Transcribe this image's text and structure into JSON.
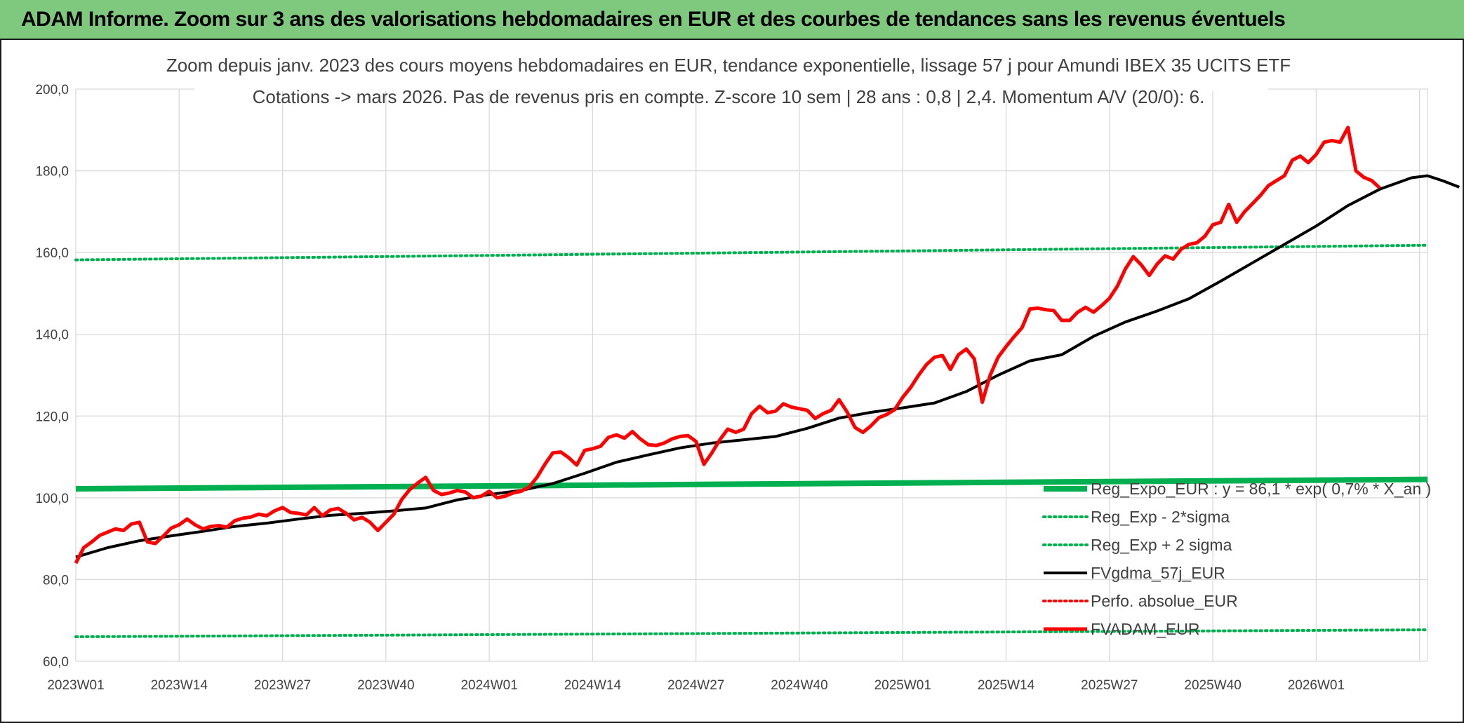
{
  "banner": {
    "title": "ADAM Informe. Zoom sur 3 ans des valorisations hebdomadaires en EUR et des courbes de tendances sans les revenus éventuels"
  },
  "colors": {
    "banner": "#7fc97f",
    "regression": "#00b050",
    "price": "#ff0000",
    "average": "#000000",
    "grid": "#d9d9d9",
    "text": "#404040"
  },
  "chart_data": {
    "type": "line",
    "title": "Zoom depuis janv. 2023 des cours moyens hebdomadaires en EUR, tendance exponentielle, lissage 57 j pour Amundi IBEX 35 UCITS ETF",
    "subtitle": "Cotations -> mars 2026. Pas de revenus pris en compte. Z-score 10 sem | 28 ans : 0,8 | 2,4. Momentum A/V (20/0): 6.",
    "xlabel": "",
    "ylabel": "",
    "ylim": [
      60,
      200
    ],
    "y_ticks": [
      "200,0",
      "180,0",
      "160,0",
      "140,0",
      "120,0",
      "100,0",
      "80,0",
      "60,0"
    ],
    "x_ticks": [
      "2023W01",
      "2023W14",
      "2023W27",
      "2023W40",
      "2024W01",
      "2024W14",
      "2024W27",
      "2024W40",
      "2025W01",
      "2025W14",
      "2025W27",
      "2025W40",
      "2026W01"
    ],
    "x_range_weeks": [
      0,
      170
    ],
    "grid": true,
    "legend_position": "bottom-right",
    "series": [
      {
        "name": "Reg_Expo_EUR : y = 86,1 * exp( 0,7% *  X_an )",
        "style": "solid-thick",
        "color": "#00b050",
        "points": [
          [
            0,
            102.2
          ],
          [
            170,
            104.5
          ]
        ]
      },
      {
        "name": "Reg_Exp - 2*sigma",
        "style": "dotted",
        "color": "#00b050",
        "points": [
          [
            0,
            66.0
          ],
          [
            170,
            67.7
          ]
        ]
      },
      {
        "name": "Reg_Exp + 2 sigma",
        "style": "dotted",
        "color": "#00b050",
        "points": [
          [
            0,
            158.2
          ],
          [
            170,
            161.8
          ]
        ]
      },
      {
        "name": "FVgdma_57j_EUR",
        "style": "solid",
        "color": "#000000",
        "points": [
          [
            0,
            85.5
          ],
          [
            4,
            87.8
          ],
          [
            8,
            89.5
          ],
          [
            12,
            90.7
          ],
          [
            16,
            91.8
          ],
          [
            20,
            93.0
          ],
          [
            24,
            93.8
          ],
          [
            28,
            94.8
          ],
          [
            32,
            95.7
          ],
          [
            36,
            96.2
          ],
          [
            40,
            96.8
          ],
          [
            44,
            97.5
          ],
          [
            48,
            99.5
          ],
          [
            52,
            100.8
          ],
          [
            56,
            101.8
          ],
          [
            60,
            103.5
          ],
          [
            64,
            106.0
          ],
          [
            68,
            108.7
          ],
          [
            72,
            110.5
          ],
          [
            76,
            112.2
          ],
          [
            80,
            113.4
          ],
          [
            84,
            114.2
          ],
          [
            88,
            115.0
          ],
          [
            92,
            117.0
          ],
          [
            96,
            119.5
          ],
          [
            100,
            120.9
          ],
          [
            104,
            122.0
          ],
          [
            108,
            123.2
          ],
          [
            112,
            126.0
          ],
          [
            116,
            130.0
          ],
          [
            120,
            133.5
          ],
          [
            124,
            135.0
          ],
          [
            128,
            139.5
          ],
          [
            132,
            143.0
          ],
          [
            136,
            145.7
          ],
          [
            140,
            148.7
          ],
          [
            144,
            153.0
          ],
          [
            148,
            157.5
          ],
          [
            152,
            162.0
          ],
          [
            156,
            166.5
          ],
          [
            160,
            171.5
          ],
          [
            164,
            175.5
          ],
          [
            168,
            178.3
          ],
          [
            170,
            178.8
          ],
          [
            172,
            177.5
          ],
          [
            174,
            176.0
          ]
        ]
      },
      {
        "name": "Perfo. absolue_EUR",
        "style": "dotted",
        "color": "#ff0000",
        "points": []
      },
      {
        "name": "FVADAM_EUR",
        "style": "solid-thick",
        "color": "#ff0000",
        "points": [
          [
            0,
            84.0
          ],
          [
            1,
            87.8
          ],
          [
            2,
            89.2
          ],
          [
            3,
            90.8
          ],
          [
            4,
            91.6
          ],
          [
            5,
            92.4
          ],
          [
            6,
            92.0
          ],
          [
            7,
            93.6
          ],
          [
            8,
            94.0
          ],
          [
            9,
            89.2
          ],
          [
            10,
            88.8
          ],
          [
            11,
            90.6
          ],
          [
            12,
            92.6
          ],
          [
            13,
            93.4
          ],
          [
            14,
            94.8
          ],
          [
            15,
            93.4
          ],
          [
            16,
            92.4
          ],
          [
            17,
            93.0
          ],
          [
            18,
            93.2
          ],
          [
            19,
            92.8
          ],
          [
            20,
            94.4
          ],
          [
            21,
            95.0
          ],
          [
            22,
            95.3
          ],
          [
            23,
            96.0
          ],
          [
            24,
            95.6
          ],
          [
            25,
            96.8
          ],
          [
            26,
            97.6
          ],
          [
            27,
            96.4
          ],
          [
            28,
            96.2
          ],
          [
            29,
            95.8
          ],
          [
            30,
            97.6
          ],
          [
            31,
            95.6
          ],
          [
            32,
            97.0
          ],
          [
            33,
            97.4
          ],
          [
            34,
            96.2
          ],
          [
            35,
            94.6
          ],
          [
            36,
            95.2
          ],
          [
            37,
            94.0
          ],
          [
            38,
            92.0
          ],
          [
            39,
            94.0
          ],
          [
            40,
            96.0
          ],
          [
            41,
            99.6
          ],
          [
            42,
            102.0
          ],
          [
            43,
            103.6
          ],
          [
            44,
            105.0
          ],
          [
            45,
            101.8
          ],
          [
            46,
            100.8
          ],
          [
            47,
            101.2
          ],
          [
            48,
            101.8
          ],
          [
            49,
            101.4
          ],
          [
            50,
            100.0
          ],
          [
            51,
            100.4
          ],
          [
            52,
            101.6
          ],
          [
            53,
            100.0
          ],
          [
            54,
            100.4
          ],
          [
            55,
            101.2
          ],
          [
            56,
            101.6
          ],
          [
            57,
            102.6
          ],
          [
            58,
            105.0
          ],
          [
            59,
            108.2
          ],
          [
            60,
            111.0
          ],
          [
            61,
            111.2
          ],
          [
            62,
            109.8
          ],
          [
            63,
            108.0
          ],
          [
            64,
            111.6
          ],
          [
            65,
            112.0
          ],
          [
            66,
            112.6
          ],
          [
            67,
            114.8
          ],
          [
            68,
            115.4
          ],
          [
            69,
            114.6
          ],
          [
            70,
            116.2
          ],
          [
            71,
            114.4
          ],
          [
            72,
            113.0
          ],
          [
            73,
            112.8
          ],
          [
            74,
            113.4
          ],
          [
            75,
            114.4
          ],
          [
            76,
            115.0
          ],
          [
            77,
            115.2
          ],
          [
            78,
            113.8
          ],
          [
            79,
            108.2
          ],
          [
            80,
            111.0
          ],
          [
            81,
            114.2
          ],
          [
            82,
            116.8
          ],
          [
            83,
            116.0
          ],
          [
            84,
            116.8
          ],
          [
            85,
            120.6
          ],
          [
            86,
            122.4
          ],
          [
            87,
            120.8
          ],
          [
            88,
            121.2
          ],
          [
            89,
            123.0
          ],
          [
            90,
            122.2
          ],
          [
            91,
            121.8
          ],
          [
            92,
            121.4
          ],
          [
            93,
            119.4
          ],
          [
            94,
            120.6
          ],
          [
            95,
            121.4
          ],
          [
            96,
            124.0
          ],
          [
            97,
            121.0
          ],
          [
            98,
            117.2
          ],
          [
            99,
            116.0
          ],
          [
            100,
            117.6
          ],
          [
            101,
            119.6
          ],
          [
            102,
            120.4
          ],
          [
            103,
            121.6
          ],
          [
            104,
            124.6
          ],
          [
            105,
            127.0
          ],
          [
            106,
            130.0
          ],
          [
            107,
            132.6
          ],
          [
            108,
            134.4
          ],
          [
            109,
            134.8
          ],
          [
            110,
            131.4
          ],
          [
            111,
            135.0
          ],
          [
            112,
            136.4
          ],
          [
            113,
            134.0
          ],
          [
            114,
            123.4
          ],
          [
            115,
            130.0
          ],
          [
            116,
            134.4
          ],
          [
            117,
            137.0
          ],
          [
            118,
            139.4
          ],
          [
            119,
            141.6
          ],
          [
            120,
            146.2
          ],
          [
            121,
            146.4
          ],
          [
            122,
            146.0
          ],
          [
            123,
            145.8
          ],
          [
            124,
            143.4
          ],
          [
            125,
            143.4
          ],
          [
            126,
            145.4
          ],
          [
            127,
            146.6
          ],
          [
            128,
            145.4
          ],
          [
            129,
            147.0
          ],
          [
            130,
            148.8
          ],
          [
            131,
            151.8
          ],
          [
            132,
            156.0
          ],
          [
            133,
            159.0
          ],
          [
            134,
            157.0
          ],
          [
            135,
            154.4
          ],
          [
            136,
            157.2
          ],
          [
            137,
            159.2
          ],
          [
            138,
            158.4
          ],
          [
            139,
            160.8
          ],
          [
            140,
            162.0
          ],
          [
            141,
            162.4
          ],
          [
            142,
            164.0
          ],
          [
            143,
            166.8
          ],
          [
            144,
            167.4
          ],
          [
            145,
            171.8
          ],
          [
            146,
            167.4
          ],
          [
            147,
            170.0
          ],
          [
            148,
            172.0
          ],
          [
            149,
            174.0
          ],
          [
            150,
            176.4
          ],
          [
            151,
            177.6
          ],
          [
            152,
            178.8
          ],
          [
            153,
            182.6
          ],
          [
            154,
            183.6
          ],
          [
            155,
            182.0
          ],
          [
            156,
            184.0
          ],
          [
            157,
            187.0
          ],
          [
            158,
            187.4
          ],
          [
            159,
            187.0
          ],
          [
            160,
            190.6
          ],
          [
            161,
            180.0
          ],
          [
            162,
            178.4
          ],
          [
            163,
            177.6
          ],
          [
            164,
            175.8
          ]
        ]
      }
    ]
  }
}
